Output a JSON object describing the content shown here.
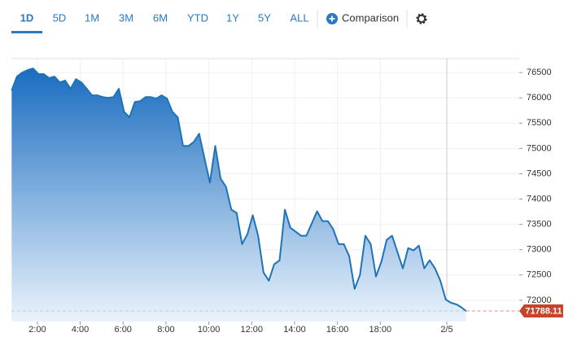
{
  "toolbar": {
    "ranges": [
      "1D",
      "5D",
      "1M",
      "3M",
      "6M",
      "YTD",
      "1Y",
      "5Y",
      "ALL"
    ],
    "active": 0,
    "comparison": "Comparison"
  },
  "chart_data": {
    "type": "area",
    "color": "#1f73b7",
    "x": [
      0.8,
      1.05,
      1.3,
      1.55,
      1.8,
      2.05,
      2.3,
      2.55,
      2.8,
      3.05,
      3.3,
      3.55,
      3.8,
      4.05,
      4.3,
      4.55,
      4.8,
      5.05,
      5.3,
      5.55,
      5.8,
      6.05,
      6.3,
      6.55,
      6.8,
      7.05,
      7.3,
      7.55,
      7.8,
      8.05,
      8.3,
      8.55,
      8.8,
      9.05,
      9.3,
      9.55,
      9.8,
      10.05,
      10.3,
      10.55,
      10.8,
      11.05,
      11.3,
      11.55,
      11.8,
      12.05,
      12.3,
      12.55,
      12.8,
      13.05,
      13.3,
      13.55,
      13.8,
      14.05,
      14.3,
      14.55,
      14.8,
      15.05,
      15.3,
      15.55,
      15.8,
      16.05,
      16.3,
      16.55,
      16.8,
      17.05,
      17.3,
      17.55,
      17.8,
      18.05,
      18.3,
      18.55,
      18.8,
      19.05,
      19.3,
      19.55,
      19.8,
      20.05,
      20.3,
      20.55,
      20.8,
      21.05,
      21.3,
      21.55,
      21.8,
      22.0
    ],
    "values": [
      76145,
      76420,
      76500,
      76550,
      76580,
      76470,
      76470,
      76390,
      76420,
      76305,
      76340,
      76180,
      76370,
      76305,
      76180,
      76050,
      76050,
      76015,
      76000,
      76015,
      76180,
      75725,
      75615,
      75920,
      75935,
      76015,
      76015,
      75985,
      76050,
      75985,
      75725,
      75615,
      75050,
      75050,
      75130,
      75290,
      74805,
      74325,
      75050,
      74405,
      74240,
      73790,
      73725,
      73110,
      73305,
      73680,
      73275,
      72550,
      72385,
      72710,
      72790,
      73790,
      73435,
      73355,
      73275,
      73275,
      73515,
      73760,
      73565,
      73565,
      73405,
      73110,
      73110,
      72870,
      72225,
      72500,
      73275,
      73110,
      72470,
      72760,
      73195,
      73275,
      72950,
      72630,
      73030,
      72985,
      73080,
      72630,
      72790,
      72630,
      72385,
      72015,
      71950,
      71920,
      71855,
      71788.11
    ],
    "xlim": [
      0.79,
      24.48
    ],
    "xticks": [
      {
        "value": 2,
        "label": "2:00"
      },
      {
        "value": 4,
        "label": "4:00"
      },
      {
        "value": 6,
        "label": "6:00"
      },
      {
        "value": 8,
        "label": "8:00"
      },
      {
        "value": 10,
        "label": "10:00"
      },
      {
        "value": 12,
        "label": "12:00"
      },
      {
        "value": 14,
        "label": "14:00"
      },
      {
        "value": 16,
        "label": "16:00"
      },
      {
        "value": 18,
        "label": "18:00"
      },
      {
        "value": 21.1,
        "label": "2/5"
      }
    ],
    "ylim": [
      71580,
      76775
    ],
    "yticks": [
      72000,
      72500,
      73000,
      73500,
      74000,
      74500,
      75000,
      75500,
      76000,
      76500
    ],
    "grid": true,
    "last_value_color": "#c9432c"
  }
}
